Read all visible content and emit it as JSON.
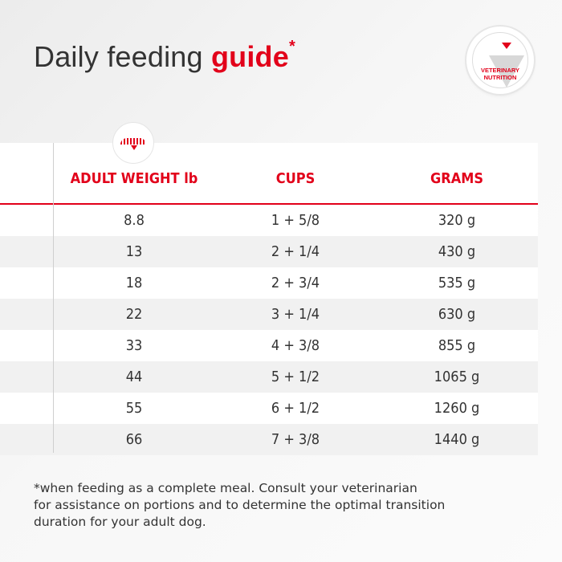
{
  "title": {
    "main": "Daily feeding ",
    "accent": "guide",
    "mark": "*"
  },
  "badge": {
    "line1": "VETERINARY",
    "line2": "NUTRITION"
  },
  "table": {
    "headers": [
      "ADULT WEIGHT lb",
      "CUPS",
      "GRAMS"
    ],
    "rows": [
      [
        "8.8",
        "1 + 5/8",
        "320 g"
      ],
      [
        "13",
        "2 + 1/4",
        "430 g"
      ],
      [
        "18",
        "2 + 3/4",
        "535 g"
      ],
      [
        "22",
        "3 + 1/4",
        "630 g"
      ],
      [
        "33",
        "4 + 3/8",
        "855 g"
      ],
      [
        "44",
        "5 + 1/2",
        "1065 g"
      ],
      [
        "55",
        "6 + 1/2",
        "1260 g"
      ],
      [
        "66",
        "7 + 3/8",
        "1440 g"
      ]
    ]
  },
  "footnote": {
    "line1": "*when feeding as a complete meal. Consult your veterinarian",
    "line2": "for assistance on portions and to determine the optimal transition",
    "line3": "duration for your adult dog."
  },
  "colors": {
    "accent": "#e2001a",
    "row_alt": "#f1f1f1",
    "text": "#333333"
  },
  "icons": {
    "badge": "veterinary-nutrition-badge-icon",
    "weight": "weight-scale-icon"
  }
}
